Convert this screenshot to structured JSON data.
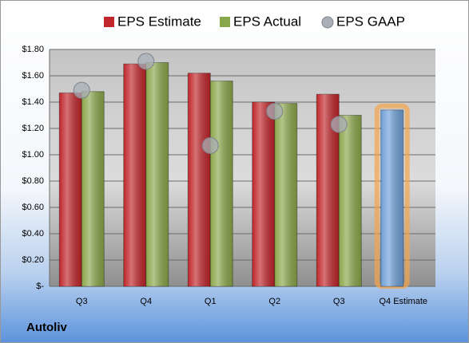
{
  "chart_data": {
    "type": "bar",
    "footer": "Autoliv",
    "categories": [
      "Q3",
      "Q4",
      "Q1",
      "Q2",
      "Q3",
      "Q4 Estimate"
    ],
    "series": [
      {
        "name": "EPS Estimate",
        "type": "bar",
        "color": "#c0262b",
        "colors": [
          "#c0262b",
          "#c0262b",
          "#c0262b",
          "#c0262b",
          "#c0262b",
          "#6fa0d8"
        ],
        "values": [
          1.47,
          1.69,
          1.62,
          1.4,
          1.46,
          1.34
        ]
      },
      {
        "name": "EPS Actual",
        "type": "bar",
        "color": "#8aa64a",
        "values": [
          1.48,
          1.7,
          1.56,
          1.39,
          1.3,
          null
        ]
      },
      {
        "name": "EPS GAAP",
        "type": "scatter",
        "color": "#a9afb8",
        "values": [
          1.49,
          1.71,
          1.07,
          1.33,
          1.23,
          null
        ]
      }
    ],
    "ylim": [
      0,
      1.8
    ],
    "yticks": [
      {
        "value": 0,
        "label": "$-"
      },
      {
        "value": 0.2,
        "label": "$0.20"
      },
      {
        "value": 0.4,
        "label": "$0.40"
      },
      {
        "value": 0.6,
        "label": "$0.60"
      },
      {
        "value": 0.8,
        "label": "$0.80"
      },
      {
        "value": 1.0,
        "label": "$1.00"
      },
      {
        "value": 1.2,
        "label": "$1.20"
      },
      {
        "value": 1.4,
        "label": "$1.40"
      },
      {
        "value": 1.6,
        "label": "$1.60"
      },
      {
        "value": 1.8,
        "label": "$1.80"
      }
    ],
    "grid": true,
    "legend": "top"
  }
}
